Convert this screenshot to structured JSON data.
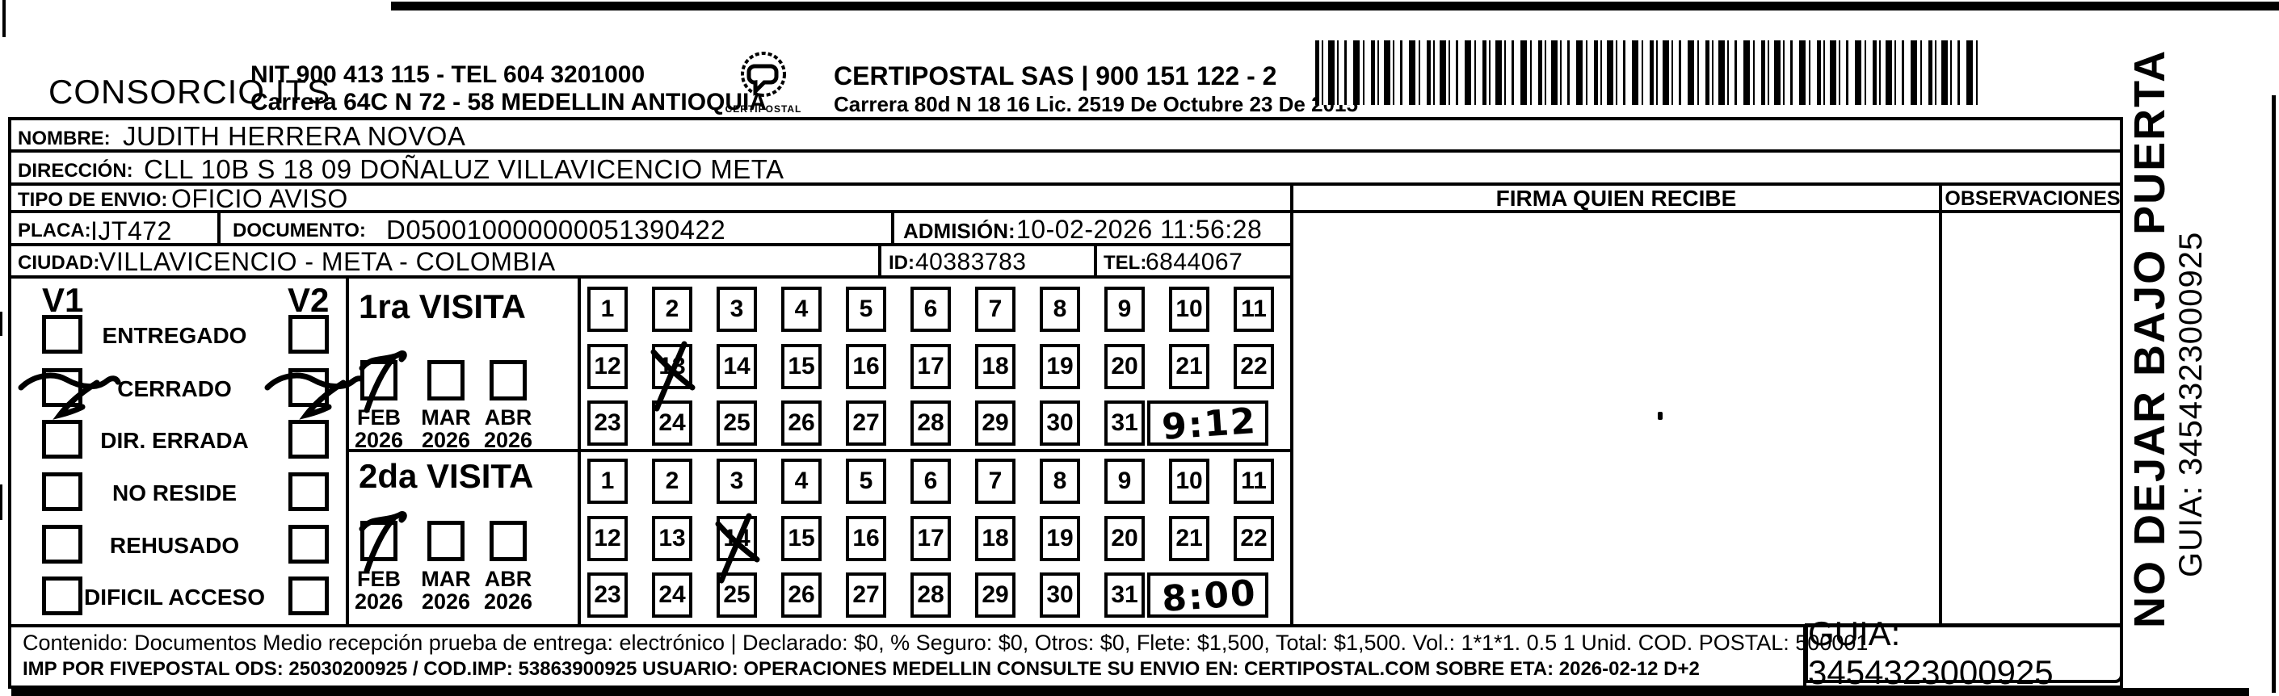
{
  "header": {
    "consorcio": "CONSORCIO ITS",
    "nit_line": "NIT 900 413 115 - TEL 604 3201000",
    "addr_line": "Carrera 64C N 72 - 58 MEDELLIN ANTIOQUIA",
    "logo_caption": "CERTIPOSTAL",
    "certipostal_line": "CERTIPOSTAL SAS | 900 151 122 - 2",
    "certipostal_addr": "Carrera 80d N 18 16  Lic. 2519 De Octubre 23 De 2015"
  },
  "fields": {
    "nombre_label": "NOMBRE:",
    "nombre": "JUDITH HERRERA NOVOA",
    "direccion_label": "DIRECCIÓN:",
    "direccion": "CLL 10B S  18 09 DOÑALUZ VILLAVICENCIO META",
    "tipo_label": "TIPO DE ENVIO:",
    "tipo": "OFICIO AVISO",
    "placa_label": "PLACA:",
    "placa": "IJT472",
    "documento_label": "DOCUMENTO:",
    "documento": "D050010000000051390422",
    "admision_label": "ADMISIÓN:",
    "admision": "10-02-2026 11:56:28",
    "ciudad_label": "CIUDAD:",
    "ciudad": "VILLAVICENCIO - META - COLOMBIA",
    "id_label": "ID:",
    "id": "40383783",
    "tel_label": "TEL:",
    "tel": "6844067",
    "firma_header": "FIRMA QUIEN RECIBE",
    "observaciones_header": "OBSERVACIONES"
  },
  "status_panel": {
    "v1": "V1",
    "v2": "V2",
    "options": [
      {
        "label": "ENTREGADO",
        "v1_checked": false,
        "v2_checked": false
      },
      {
        "label": "CERRADO",
        "v1_checked": true,
        "v2_checked": true
      },
      {
        "label": "DIR. ERRADA",
        "v1_checked": false,
        "v2_checked": false
      },
      {
        "label": "NO RESIDE",
        "v1_checked": false,
        "v2_checked": false
      },
      {
        "label": "REHUSADO",
        "v1_checked": false,
        "v2_checked": false
      },
      {
        "label": "DIFICIL ACCESO",
        "v1_checked": false,
        "v2_checked": false
      }
    ]
  },
  "visits": [
    {
      "title": "1ra VISITA",
      "months": [
        {
          "month": "FEB",
          "year": "2026",
          "checked": true
        },
        {
          "month": "MAR",
          "year": "2026",
          "checked": false
        },
        {
          "month": "ABR",
          "year": "2026",
          "checked": false
        }
      ],
      "day_count": 31,
      "crossed_day": 13,
      "time_written": "9:12"
    },
    {
      "title": "2da VISITA",
      "months": [
        {
          "month": "FEB",
          "year": "2026",
          "checked": true
        },
        {
          "month": "MAR",
          "year": "2026",
          "checked": false
        },
        {
          "month": "ABR",
          "year": "2026",
          "checked": false
        }
      ],
      "day_count": 31,
      "crossed_day": 14,
      "time_written": "8:00"
    }
  ],
  "footer": {
    "contenido_line1": "Contenido: Documentos Medio recepción prueba de entrega: electrónico | Declarado: $0, % Seguro: $0, Otros: $0, Flete: $1,500, Total: $1,500. Vol.: 1*1*1. 0.5  1 Unid. COD. POSTAL: 500001",
    "contenido_line2": "IMP POR FIVEPOSTAL ODS: 25030200925 / COD.IMP: 53863900925 USUARIO: OPERACIONES MEDELLIN CONSULTE SU ENVIO EN: CERTIPOSTAL.COM SOBRE ETA: 2026-02-12 D+2",
    "guia": "GUIA: 3454323000925"
  },
  "side": {
    "warning": "NO DEJAR BAJO PUERTA",
    "guia": "GUIA: 3454323000925"
  },
  "colors": {
    "ink": "#000000",
    "paper": "#ffffff"
  }
}
